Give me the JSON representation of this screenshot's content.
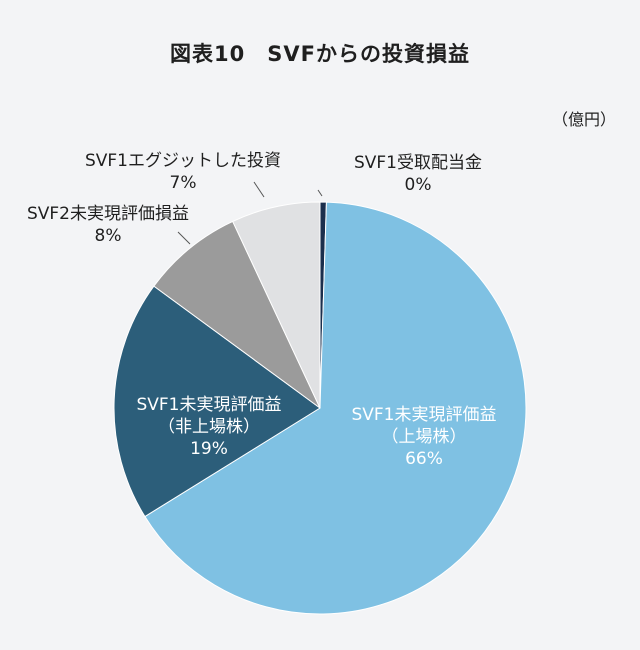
{
  "title": "図表10　SVFからの投資損益",
  "unit": "（億円）",
  "chart_data": {
    "type": "pie",
    "title": "図表10　SVFからの投資損益",
    "slices": [
      {
        "lines": [
          "SVF1受取配当金"
        ],
        "pct_label": "0%",
        "value": 0.5,
        "color": "#1b2f4d"
      },
      {
        "lines": [
          "SVF1未実現評価益",
          "（上場株）"
        ],
        "pct_label": "66%",
        "value": 66,
        "color": "#7fc1e3"
      },
      {
        "lines": [
          "SVF1未実現評価益",
          "（非上場株）"
        ],
        "pct_label": "19%",
        "value": 19,
        "color": "#2c5e7a"
      },
      {
        "lines": [
          "SVF2未実現評価損益"
        ],
        "pct_label": "8%",
        "value": 8,
        "color": "#9b9b9b"
      },
      {
        "lines": [
          "SVF1エグジットした投資"
        ],
        "pct_label": "7%",
        "value": 7,
        "color": "#e0e1e3"
      }
    ],
    "start_angle_deg": 0,
    "direction": "clockwise"
  }
}
